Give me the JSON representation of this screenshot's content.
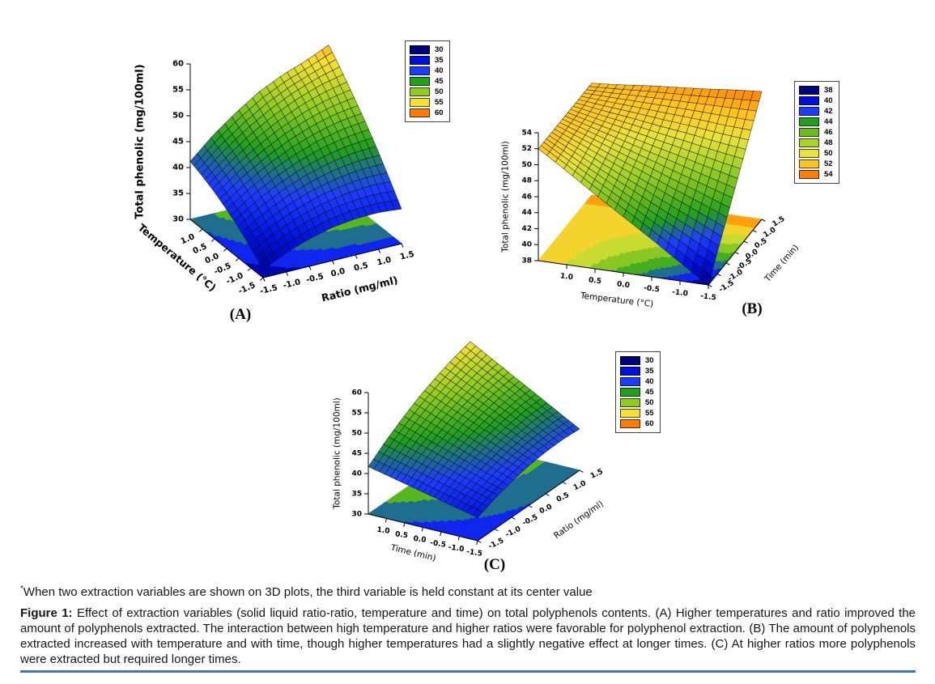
{
  "figure": {
    "footnote_marker": "*",
    "footnote": "When two extraction variables are shown on 3D plots, the third variable is held constant at its center value",
    "caption_label": "Figure 1:",
    "caption": "Effect of extraction variables (solid liquid ratio-ratio, temperature and time) on total polyphenols contents. (A) Higher temperatures and ratio improved the amount of polyphenols extracted. The interaction between high temperature and higher ratios were favorable for polyphenol extraction. (B) The amount of polyphenols extracted increased with temperature and with time, though higher temperatures had a slightly negative effect at longer times. (C) At higher ratios more polyphenols were extracted but required longer times.",
    "divider_color": "#4472C4"
  },
  "chart_data": [
    {
      "id": "A",
      "type": "surface3d",
      "panel_label": "(A)",
      "z_axis": {
        "label": "Total phenolic (mg/100ml)",
        "min": 30,
        "max": 60,
        "ticks": [
          "30",
          "35",
          "40",
          "45",
          "50",
          "55",
          "60"
        ]
      },
      "x_axis": {
        "label": "Ratio (mg/ml)",
        "ticks": [
          "-1.5",
          "-1.0",
          "-0.5",
          "0.0",
          "0.5",
          "1.0",
          "1.5"
        ]
      },
      "y_axis": {
        "label": "Temperature (°C)",
        "ticks": [
          "1.0",
          "0.5",
          "0.0",
          "-0.5",
          "-1.0",
          "-1.5"
        ]
      },
      "legend": [
        {
          "label": "30",
          "color": "#000080"
        },
        {
          "label": "35",
          "color": "#0010DC"
        },
        {
          "label": "40",
          "color": "#1E3CFF"
        },
        {
          "label": "45",
          "color": "#1FA01F"
        },
        {
          "label": "50",
          "color": "#8FCC1F"
        },
        {
          "label": "55",
          "color": "#F5E132"
        },
        {
          "label": "60",
          "color": "#FF7D00"
        }
      ],
      "surface": {
        "x_values": [
          -1.5,
          -1.0,
          -0.5,
          0.0,
          0.5,
          1.0,
          1.5
        ],
        "y_values": [
          -1.5,
          -1.0,
          -0.5,
          0.0,
          0.5,
          1.0,
          1.5
        ],
        "z_grid": [
          [
            31.6,
            33.7,
            35.3,
            36.4,
            37.0,
            37.1,
            36.7
          ],
          [
            33.8,
            36.2,
            38.1,
            39.5,
            40.4,
            40.8,
            40.7
          ],
          [
            35.8,
            38.5,
            40.7,
            42.4,
            43.6,
            44.3,
            44.5
          ],
          [
            37.5,
            40.5,
            43.0,
            45.0,
            46.5,
            47.5,
            48.0
          ],
          [
            39.0,
            42.3,
            45.1,
            47.4,
            49.2,
            50.5,
            51.2
          ],
          [
            40.2,
            43.8,
            46.9,
            49.5,
            51.6,
            53.2,
            54.3
          ],
          [
            41.2,
            45.2,
            48.5,
            51.4,
            53.5,
            55.1,
            57.1
          ]
        ]
      }
    },
    {
      "id": "B",
      "type": "surface3d",
      "panel_label": "(B)",
      "z_axis": {
        "label": "Total phenolic (mg/100ml)",
        "min": 38,
        "max": 54,
        "ticks": [
          "38",
          "40",
          "42",
          "44",
          "46",
          "48",
          "50",
          "52",
          "54"
        ]
      },
      "x_axis": {
        "label": "Temperature (°C)",
        "ticks": [
          "1.0",
          "0.5",
          "0.0",
          "-0.5",
          "-1.0",
          "-1.5"
        ]
      },
      "y_axis": {
        "label": "Time (min)",
        "ticks": [
          "1.5",
          "1.0",
          "0.5",
          "0.0",
          "-0.5",
          "-1.0",
          "-1.5"
        ]
      },
      "legend": [
        {
          "label": "38",
          "color": "#000080"
        },
        {
          "label": "40",
          "color": "#0010DC"
        },
        {
          "label": "42",
          "color": "#1E3CFF"
        },
        {
          "label": "44",
          "color": "#1FA01F"
        },
        {
          "label": "46",
          "color": "#6ABB1E"
        },
        {
          "label": "48",
          "color": "#A8D428"
        },
        {
          "label": "50",
          "color": "#E8E23A"
        },
        {
          "label": "52",
          "color": "#FFC51E"
        },
        {
          "label": "54",
          "color": "#FF7D00"
        }
      ],
      "surface": {
        "x_values": [
          -1.5,
          -1.0,
          -0.5,
          0.0,
          0.5,
          1.0,
          1.5
        ],
        "y_values": [
          -1.5,
          -1.0,
          -0.5,
          0.0,
          0.5,
          1.0,
          1.5
        ],
        "z_grid": [
          [
            38.0,
            40.3,
            42.7,
            45.0,
            47.3,
            49.7,
            52.0
          ],
          [
            40.7,
            42.6,
            44.4,
            46.3,
            48.2,
            50.1,
            52.0
          ],
          [
            43.3,
            44.8,
            46.2,
            47.7,
            49.1,
            50.6,
            52.0
          ],
          [
            46.0,
            47.0,
            48.0,
            49.0,
            50.0,
            51.0,
            52.0
          ],
          [
            48.7,
            49.2,
            49.8,
            50.3,
            50.9,
            51.4,
            52.0
          ],
          [
            51.3,
            51.4,
            51.6,
            51.7,
            51.8,
            51.9,
            52.0
          ],
          [
            54.0,
            53.7,
            53.3,
            53.0,
            52.7,
            52.3,
            52.0
          ]
        ]
      }
    },
    {
      "id": "C",
      "type": "surface3d",
      "panel_label": "(C)",
      "z_axis": {
        "label": "Total phenolic (mg/100ml)",
        "min": 30,
        "max": 60,
        "ticks": [
          "30",
          "35",
          "40",
          "45",
          "50",
          "55",
          "60"
        ]
      },
      "x_axis": {
        "label": "Time (min)",
        "ticks": [
          "1.0",
          "0.5",
          "0.0",
          "-0.5",
          "-1.0",
          "-1.5"
        ]
      },
      "y_axis": {
        "label": "Ratio (mg/ml)",
        "ticks": [
          "1.5",
          "1.0",
          "0.5",
          "0.0",
          "-0.5",
          "-1.0",
          "-1.5"
        ]
      },
      "legend": [
        {
          "label": "30",
          "color": "#000080"
        },
        {
          "label": "35",
          "color": "#0010DC"
        },
        {
          "label": "40",
          "color": "#1E3CFF"
        },
        {
          "label": "45",
          "color": "#1FA01F"
        },
        {
          "label": "50",
          "color": "#8FCC1F"
        },
        {
          "label": "55",
          "color": "#F5E132"
        },
        {
          "label": "60",
          "color": "#FF7D00"
        }
      ],
      "surface": {
        "x_values": [
          -1.5,
          -1.0,
          -0.5,
          0.0,
          0.5,
          1.0,
          1.5
        ],
        "y_values": [
          -1.5,
          -1.0,
          -0.5,
          0.0,
          0.5,
          1.0,
          1.5
        ],
        "z_grid": [
          [
            35.7,
            36.7,
            37.7,
            38.7,
            39.7,
            40.7,
            41.7
          ],
          [
            37.5,
            38.7,
            40.0,
            41.2,
            42.5,
            43.7,
            45.0
          ],
          [
            38.8,
            40.3,
            41.8,
            43.3,
            44.8,
            46.3,
            47.8
          ],
          [
            39.8,
            41.5,
            43.3,
            45.0,
            46.8,
            48.5,
            50.3
          ],
          [
            40.3,
            42.3,
            44.3,
            46.3,
            48.3,
            50.3,
            52.3
          ],
          [
            40.5,
            42.7,
            45.0,
            47.2,
            49.5,
            51.7,
            54.0
          ],
          [
            40.2,
            42.7,
            45.2,
            47.7,
            50.2,
            52.7,
            55.2
          ]
        ]
      }
    }
  ]
}
